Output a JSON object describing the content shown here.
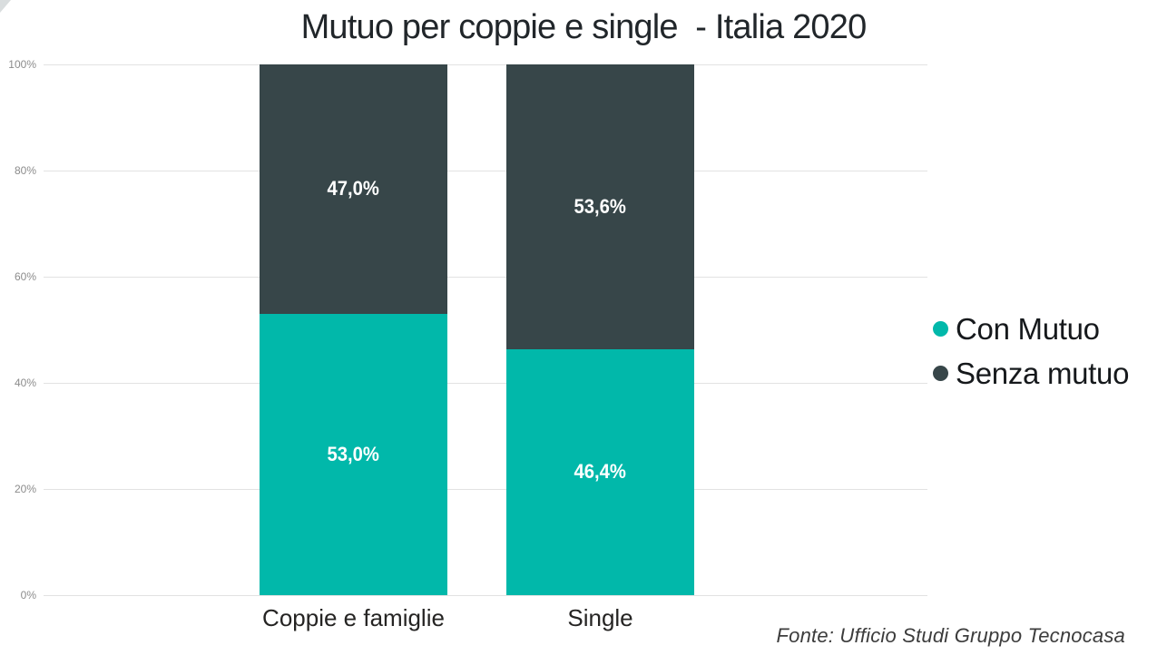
{
  "page": {
    "title": "Mutuo per coppie e single  - Italia 2020",
    "source": "Fonte: Ufficio Studi Gruppo Tecnocasa"
  },
  "chart_data": {
    "type": "bar",
    "variant": "stacked-100",
    "title": "Mutuo per coppie e single  - Italia 2020",
    "categories": [
      "Coppie e famiglie",
      "Single"
    ],
    "series": [
      {
        "name": "Con Mutuo",
        "color": "#01B8AA",
        "values": [
          53.0,
          46.4
        ],
        "labels": [
          "53,0%",
          "46,4%"
        ]
      },
      {
        "name": "Senza mutuo",
        "color": "#374649",
        "values": [
          47.0,
          53.6
        ],
        "labels": [
          "47,0%",
          "53,6%"
        ]
      }
    ],
    "y_axis": {
      "min": 0,
      "max": 100,
      "tick_labels": [
        "0%",
        "20%",
        "40%",
        "60%",
        "80%",
        "100%"
      ],
      "tick_values": [
        0,
        20,
        40,
        60,
        80,
        100
      ],
      "grid": true
    },
    "legend": {
      "position": "right",
      "entries": [
        "Con Mutuo",
        "Senza mutuo"
      ]
    },
    "source": "Fonte: Ufficio Studi Gruppo Tecnocasa"
  },
  "colors": {
    "con_mutuo": "#01B8AA",
    "senza_mutuo": "#374649",
    "gridline": "#E2E2E2",
    "tick_label": "#8C8C8C",
    "title_text": "#21262A",
    "data_label": "#FFFFFF",
    "background": "#FFFFFF"
  }
}
